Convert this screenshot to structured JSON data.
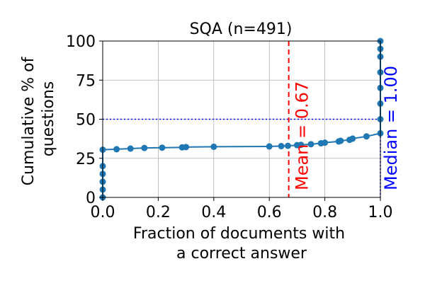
{
  "chart_data": {
    "type": "line",
    "title": "SQA (n=491)",
    "xlabel_lines": [
      "Fraction of documents with",
      "a correct answer"
    ],
    "ylabel_lines": [
      "Cumulative % of",
      "questions"
    ],
    "xlim": [
      0,
      1
    ],
    "ylim": [
      0,
      100
    ],
    "xticks": [
      "0.0",
      "0.2",
      "0.4",
      "0.6",
      "0.8",
      "1.0"
    ],
    "yticks": [
      "0",
      "25",
      "50",
      "75",
      "100"
    ],
    "grid": true,
    "series": [
      {
        "color": "#1f77b4",
        "x": [
          0.0,
          0.0,
          0.0,
          0.0,
          0.0,
          0.0,
          0.05,
          0.1,
          0.15,
          0.214,
          0.286,
          0.3,
          0.4,
          0.6,
          0.643,
          0.667,
          0.7,
          0.714,
          0.75,
          0.786,
          0.8,
          0.85,
          0.857,
          0.889,
          0.9,
          0.95,
          1.0,
          1.0,
          1.0,
          1.0,
          1.0,
          1.0,
          1.0,
          1.0
        ],
        "y": [
          0,
          5,
          10,
          15,
          20,
          30.5,
          30.8,
          31.2,
          31.6,
          31.8,
          32.0,
          32.2,
          32.4,
          32.6,
          32.8,
          33.0,
          33.4,
          33.6,
          34.0,
          34.6,
          35.0,
          35.8,
          36.2,
          36.8,
          37.6,
          39.0,
          41.0,
          50,
          60,
          70,
          80,
          90,
          95,
          100
        ]
      }
    ],
    "mean_line": {
      "value": 0.67,
      "label": "Mean = 0.67",
      "color": "#ff0000"
    },
    "median_line": {
      "value": 1.0,
      "label": "Median = 1.00",
      "color": "#0000ff"
    },
    "hline": {
      "value": 50,
      "color": "#0000ff"
    }
  }
}
